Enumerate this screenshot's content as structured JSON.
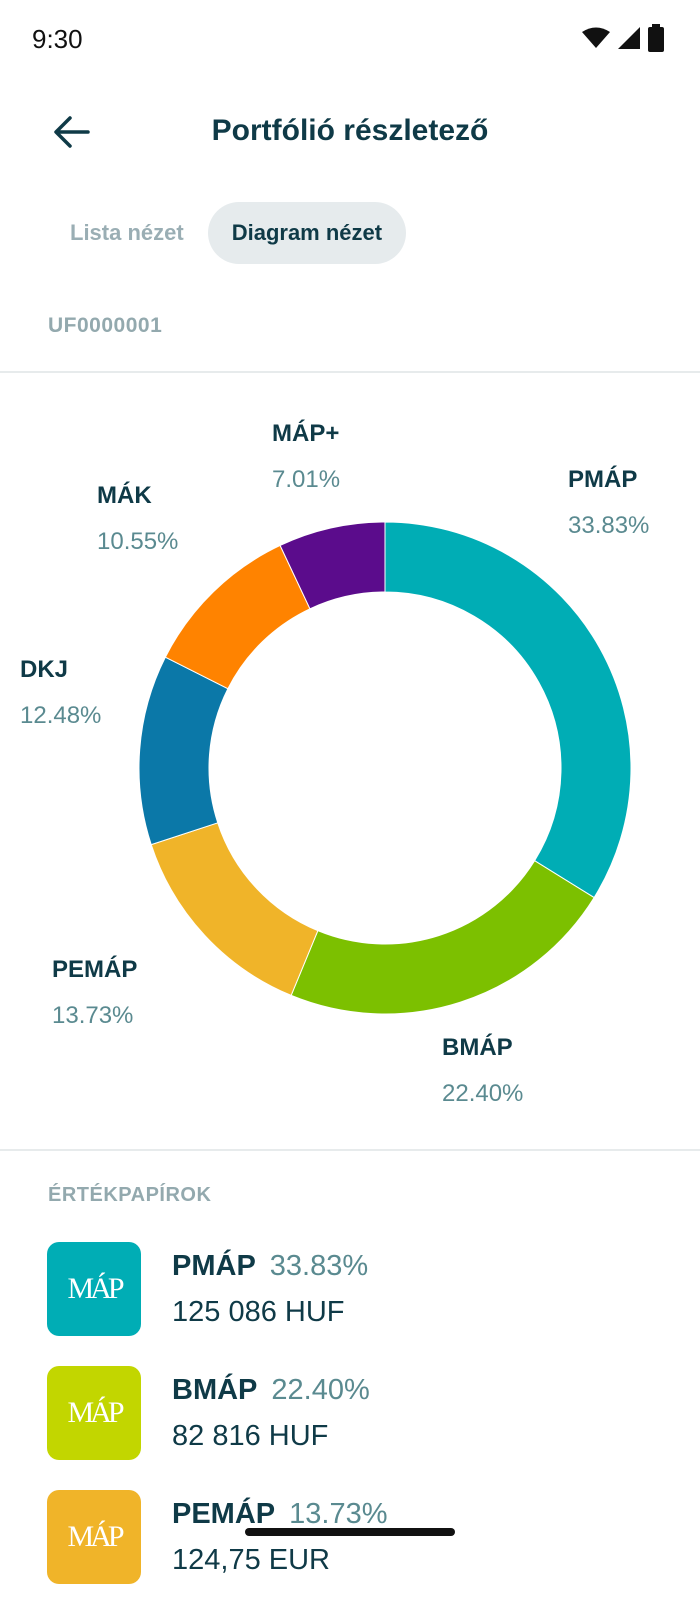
{
  "status_bar": {
    "time": "9:30"
  },
  "header": {
    "title": "Portfólió részletező",
    "back_icon": "arrow-left-icon"
  },
  "tabs": [
    {
      "label": "Lista nézet",
      "active": false
    },
    {
      "label": "Diagram nézet",
      "active": true
    }
  ],
  "account": {
    "id": "UF0000001"
  },
  "chart_data": {
    "type": "pie",
    "donut": true,
    "slices": [
      {
        "label": "PMÁP",
        "value": 33.83,
        "display": "33.83%",
        "color": "#00adb5"
      },
      {
        "label": "BMÁP",
        "value": 22.4,
        "display": "22.40%",
        "color": "#7cc000"
      },
      {
        "label": "PEMÁP",
        "value": 13.73,
        "display": "13.73%",
        "color": "#f0b429"
      },
      {
        "label": "DKJ",
        "value": 12.48,
        "display": "12.48%",
        "color": "#0b78a8"
      },
      {
        "label": "MÁK",
        "value": 10.55,
        "display": "10.55%",
        "color": "#ff8300"
      },
      {
        "label": "MÁP+",
        "value": 7.01,
        "display": "7.01%",
        "color": "#5b0c8c"
      }
    ]
  },
  "securities": {
    "title": "ÉRTÉKPAPÍROK",
    "items": [
      {
        "name": "PMÁP",
        "percent": "33.83%",
        "amount": "125 086 HUF",
        "color": "#00adb5",
        "logo_text": "MÁP"
      },
      {
        "name": "BMÁP",
        "percent": "22.40%",
        "amount": "82 816 HUF",
        "color": "#c2d600",
        "logo_text": "MÁP"
      },
      {
        "name": "PEMÁP",
        "percent": "13.73%",
        "amount": "124,75 EUR",
        "color": "#f0b429",
        "logo_text": "MÁP"
      }
    ]
  }
}
